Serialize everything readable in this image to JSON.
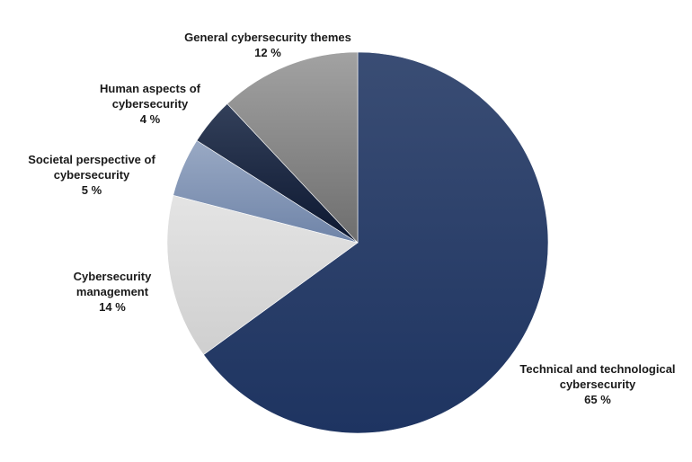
{
  "chart_data": {
    "type": "pie",
    "start_angle_deg": 0,
    "direction": "clockwise",
    "slices": [
      {
        "label_lines": [
          "Technical and technological",
          "cybersecurity"
        ],
        "pct_label": "65 %",
        "value": 65,
        "color": "#1f3560"
      },
      {
        "label_lines": [
          "Cybersecurity",
          "management"
        ],
        "pct_label": "14 %",
        "value": 14,
        "color": "#d9d9d9"
      },
      {
        "label_lines": [
          "Societal perspective of",
          "cybersecurity"
        ],
        "pct_label": "5 %",
        "value": 5,
        "color": "#7f93b4"
      },
      {
        "label_lines": [
          "Human aspects of",
          "cybersecurity"
        ],
        "pct_label": "4 %",
        "value": 4,
        "color": "#0f1a33"
      },
      {
        "label_lines": [
          "General cybersecurity themes"
        ],
        "pct_label": "12 %",
        "value": 12,
        "color": "#7d7d7d"
      }
    ]
  }
}
